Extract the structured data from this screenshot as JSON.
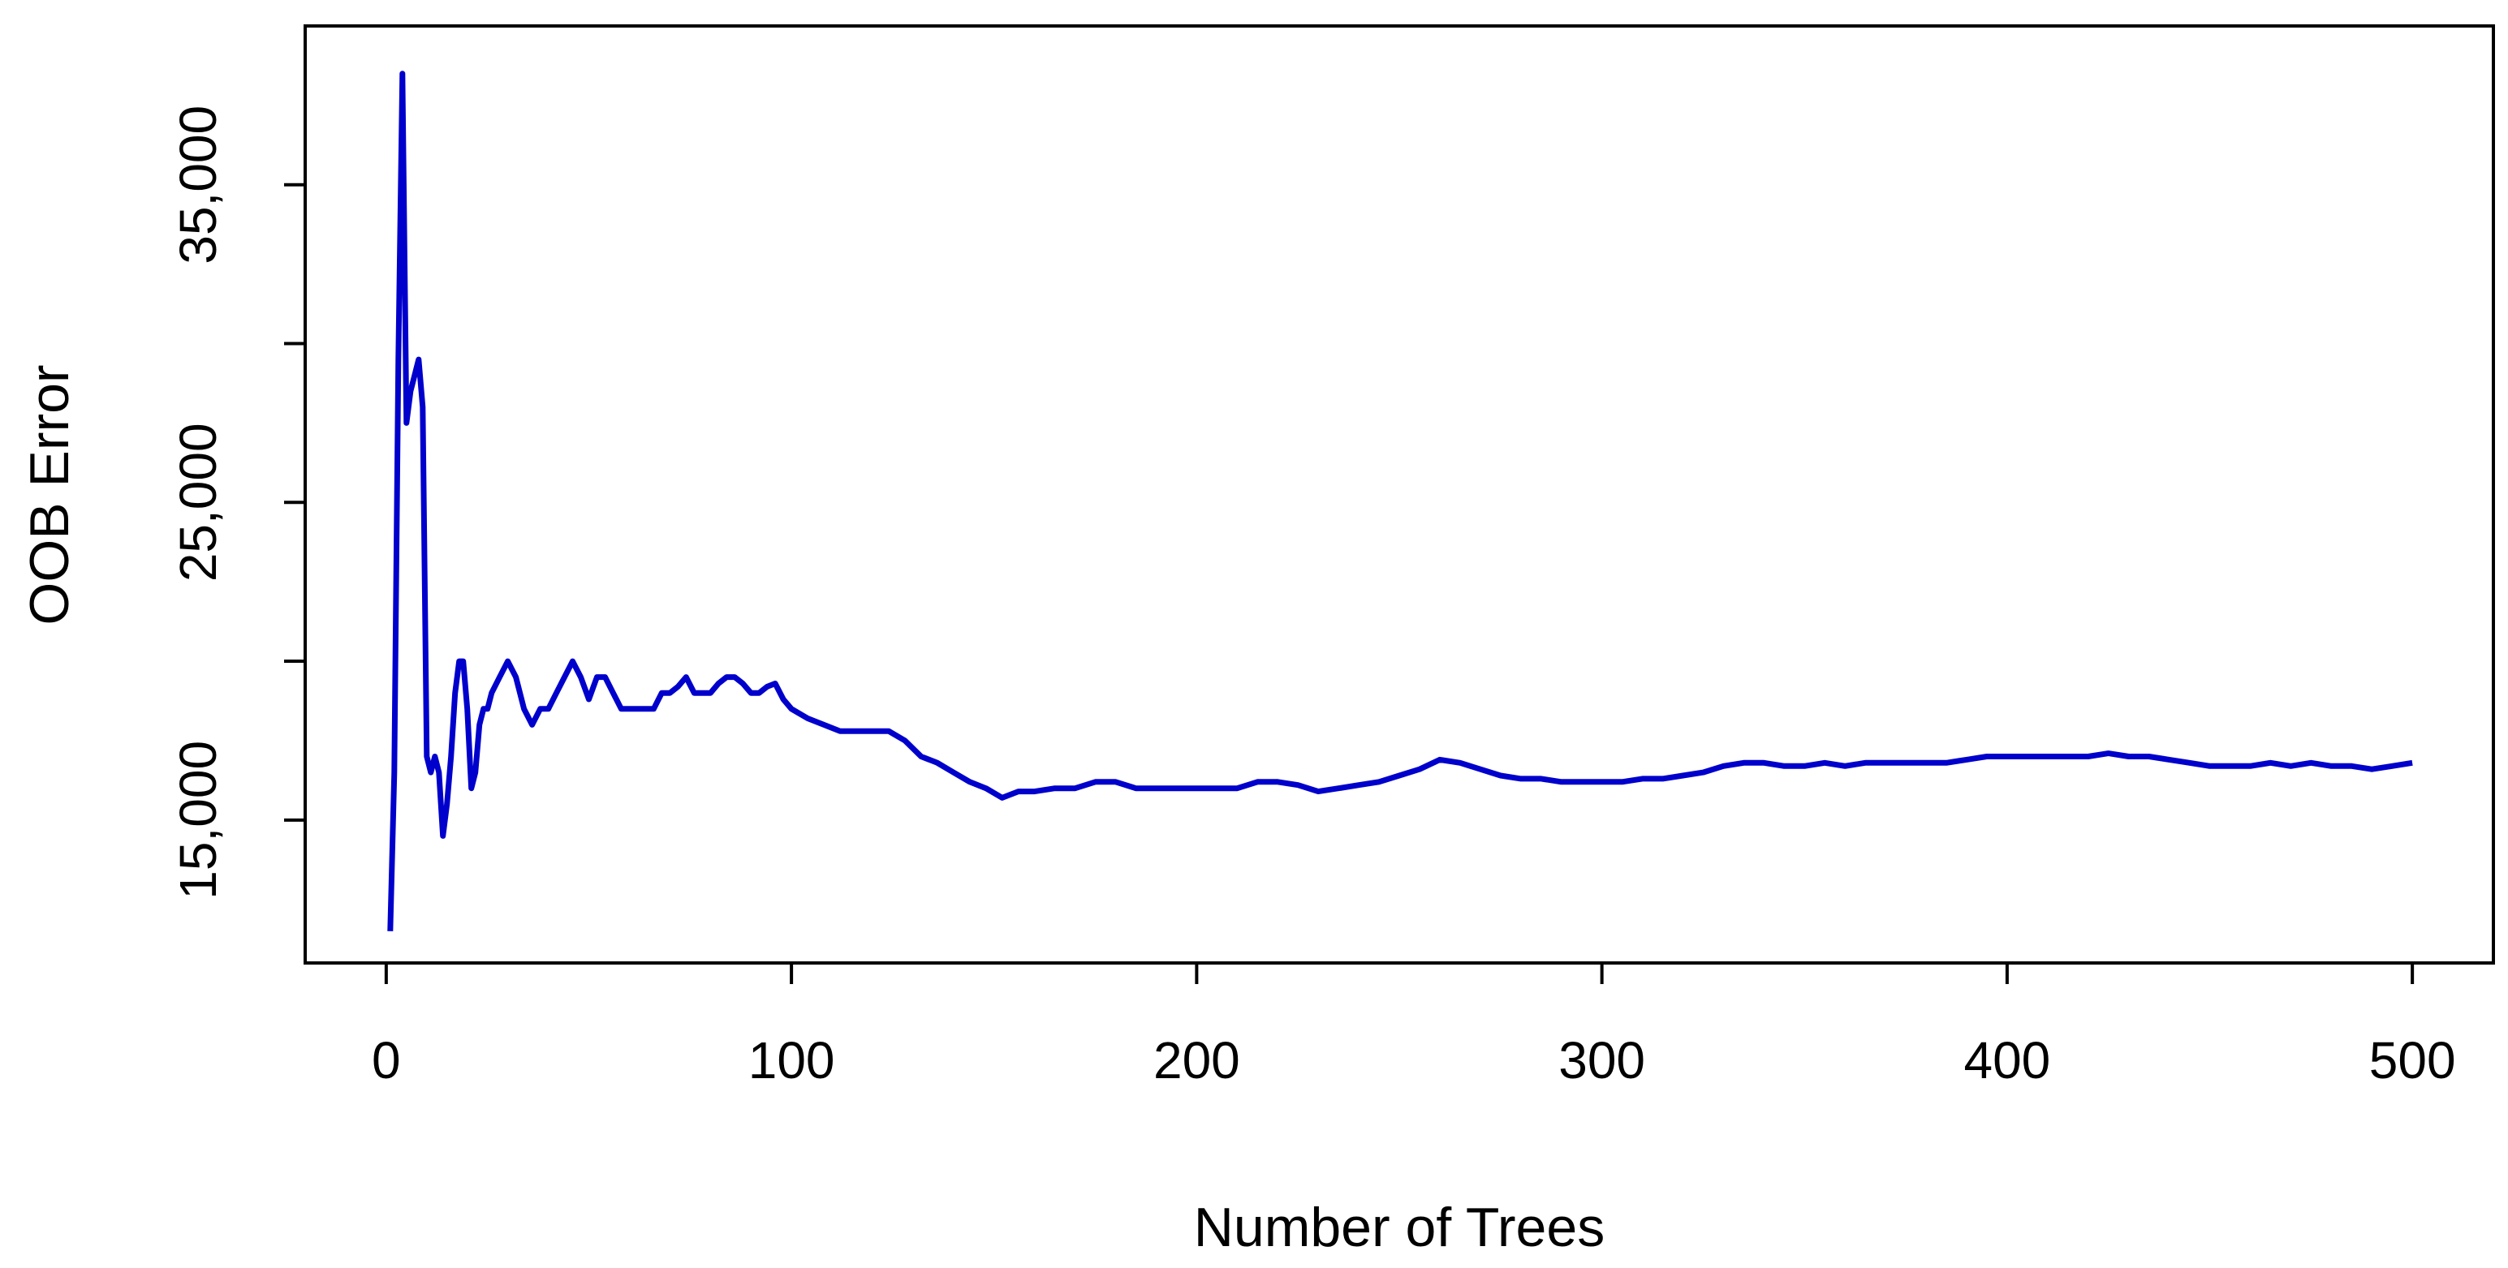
{
  "chart_data": {
    "type": "line",
    "xlabel": "Number of Trees",
    "ylabel": "OOB Error",
    "xlim": [
      -20,
      520
    ],
    "ylim": [
      10500,
      40000
    ],
    "xticks": [
      0,
      100,
      200,
      300,
      400,
      500
    ],
    "xtick_labels": [
      "0",
      "100",
      "200",
      "300",
      "400",
      "500"
    ],
    "yticks": [
      15000,
      25000,
      35000
    ],
    "ytick_labels": [
      "15,000",
      "25,000",
      "35,000"
    ],
    "yticks_minor": [
      20000,
      30000
    ],
    "grid": false,
    "legend": "none",
    "line_color": "#0000cc",
    "series": [
      {
        "x": [
          1,
          2,
          3,
          4,
          5,
          6,
          7,
          8,
          9,
          10,
          11,
          12,
          13,
          14,
          15,
          16,
          17,
          18,
          19,
          20,
          21,
          22,
          23,
          24,
          25,
          26,
          28,
          30,
          32,
          34,
          36,
          38,
          40,
          42,
          44,
          46,
          48,
          50,
          52,
          54,
          56,
          58,
          60,
          62,
          64,
          66,
          68,
          70,
          72,
          74,
          76,
          78,
          80,
          82,
          84,
          86,
          88,
          90,
          92,
          94,
          96,
          98,
          100,
          104,
          108,
          112,
          116,
          120,
          124,
          128,
          132,
          136,
          140,
          144,
          148,
          152,
          156,
          160,
          165,
          170,
          175,
          180,
          185,
          190,
          195,
          200,
          205,
          210,
          215,
          220,
          225,
          230,
          235,
          240,
          245,
          250,
          255,
          260,
          265,
          270,
          275,
          280,
          285,
          290,
          295,
          300,
          305,
          310,
          315,
          320,
          325,
          330,
          335,
          340,
          345,
          350,
          355,
          360,
          365,
          370,
          375,
          380,
          385,
          390,
          395,
          400,
          405,
          410,
          415,
          420,
          425,
          430,
          435,
          440,
          445,
          450,
          455,
          460,
          465,
          470,
          475,
          480,
          485,
          490,
          495,
          500
        ],
        "values": [
          11500,
          16500,
          29500,
          38500,
          27500,
          28500,
          29000,
          29500,
          28000,
          17000,
          16500,
          17000,
          16500,
          14500,
          15500,
          17000,
          19000,
          20000,
          20000,
          18500,
          16000,
          16500,
          18000,
          18500,
          18500,
          19000,
          19500,
          20000,
          19500,
          18500,
          18000,
          18500,
          18500,
          19000,
          19500,
          20000,
          19500,
          18800,
          19500,
          19500,
          19000,
          18500,
          18500,
          18500,
          18500,
          18500,
          19000,
          19000,
          19200,
          19500,
          19000,
          19000,
          19000,
          19300,
          19500,
          19500,
          19300,
          19000,
          19000,
          19200,
          19300,
          18800,
          18500,
          18200,
          18000,
          17800,
          17800,
          17800,
          17800,
          17500,
          17000,
          16800,
          16500,
          16200,
          16000,
          15700,
          15900,
          15900,
          16000,
          16000,
          16200,
          16200,
          16000,
          16000,
          16000,
          16000,
          16000,
          16000,
          16200,
          16200,
          16100,
          15900,
          16000,
          16100,
          16200,
          16400,
          16600,
          16900,
          16800,
          16600,
          16400,
          16300,
          16300,
          16200,
          16200,
          16200,
          16200,
          16300,
          16300,
          16400,
          16500,
          16700,
          16800,
          16800,
          16700,
          16700,
          16800,
          16700,
          16800,
          16800,
          16800,
          16800,
          16800,
          16900,
          17000,
          17000,
          17000,
          17000,
          17000,
          17000,
          17100,
          17000,
          17000,
          16900,
          16800,
          16700,
          16700,
          16700,
          16800,
          16700,
          16800,
          16700,
          16700,
          16600,
          16700,
          16800
        ]
      }
    ]
  }
}
